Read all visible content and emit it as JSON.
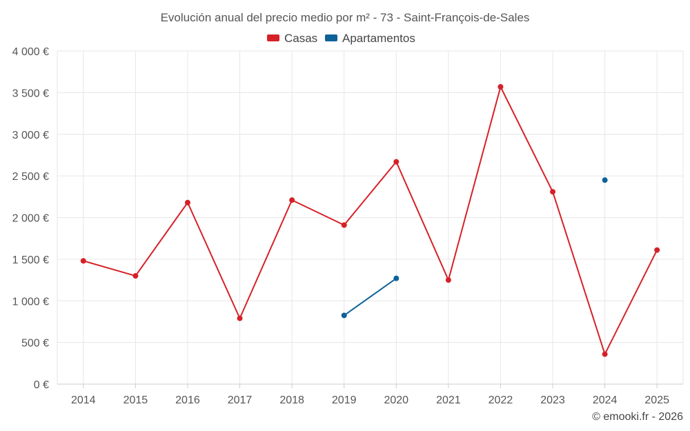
{
  "chart_data": {
    "type": "line",
    "title": "Evolución anual del precio medio por m² - 73 - Saint-François-de-Sales",
    "categories": [
      "2014",
      "2015",
      "2016",
      "2017",
      "2018",
      "2019",
      "2020",
      "2021",
      "2022",
      "2023",
      "2024",
      "2025"
    ],
    "series": [
      {
        "name": "Casas",
        "color": "#d62027",
        "values": [
          1480,
          1300,
          2180,
          790,
          2210,
          1910,
          2670,
          1250,
          3570,
          2310,
          360,
          1610
        ]
      },
      {
        "name": "Apartamentos",
        "color": "#0e6298",
        "values": [
          null,
          null,
          null,
          null,
          null,
          825,
          1270,
          null,
          null,
          null,
          2450,
          null
        ]
      }
    ],
    "ylim": [
      0,
      4000
    ],
    "yticks": [
      0,
      500,
      1000,
      1500,
      2000,
      2500,
      3000,
      3500,
      4000
    ],
    "ytick_labels": [
      "0 €",
      "500 €",
      "1 000 €",
      "1 500 €",
      "2 000 €",
      "2 500 €",
      "3 000 €",
      "3 500 €",
      "4 000 €"
    ],
    "xlabel": "",
    "ylabel": "",
    "grid": true,
    "legend_position": "top-center"
  },
  "footer": {
    "credit": "© emooki.fr - 2026"
  }
}
